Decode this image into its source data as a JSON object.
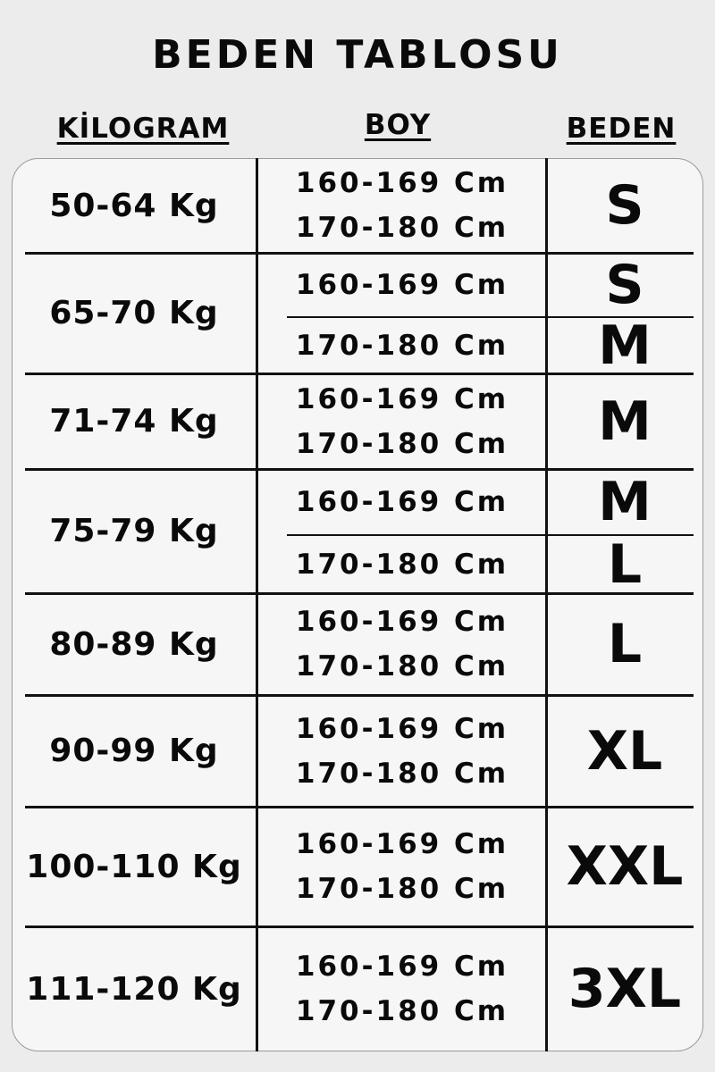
{
  "title": "BEDEN TABLOSU",
  "columns": {
    "weight": "KİLOGRAM",
    "height": "BOY",
    "size": "BEDEN"
  },
  "rows": [
    {
      "weight": "50-64 Kg",
      "heights": [
        "160-169 Cm",
        "170-180 Cm"
      ],
      "sizes": [
        "S"
      ]
    },
    {
      "weight": "65-70 Kg",
      "heights": [
        "160-169 Cm",
        "170-180 Cm"
      ],
      "sizes": [
        "S",
        "M"
      ]
    },
    {
      "weight": "71-74 Kg",
      "heights": [
        "160-169 Cm",
        "170-180 Cm"
      ],
      "sizes": [
        "M"
      ]
    },
    {
      "weight": "75-79 Kg",
      "heights": [
        "160-169 Cm",
        "170-180 Cm"
      ],
      "sizes": [
        "M",
        "L"
      ]
    },
    {
      "weight": "80-89 Kg",
      "heights": [
        "160-169 Cm",
        "170-180 Cm"
      ],
      "sizes": [
        "L"
      ]
    },
    {
      "weight": "90-99 Kg",
      "heights": [
        "160-169 Cm",
        "170-180 Cm"
      ],
      "sizes": [
        "XL"
      ]
    },
    {
      "weight": "100-110 Kg",
      "heights": [
        "160-169 Cm",
        "170-180 Cm"
      ],
      "sizes": [
        "XXL"
      ]
    },
    {
      "weight": "111-120 Kg",
      "heights": [
        "160-169 Cm",
        "170-180 Cm"
      ],
      "sizes": [
        "3XL"
      ]
    }
  ]
}
